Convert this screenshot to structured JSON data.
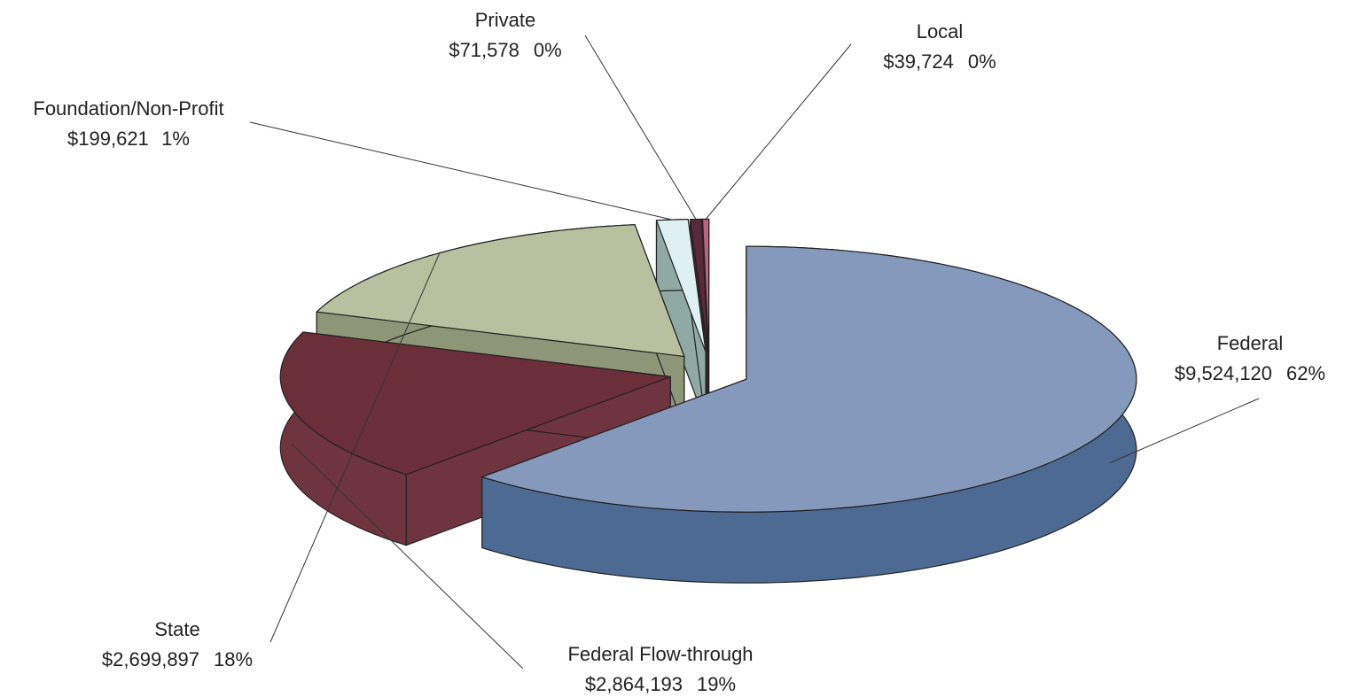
{
  "chart_data": {
    "type": "pie3d",
    "categories": [
      "Federal",
      "Federal Flow-through",
      "State",
      "Foundation/Non-Profit",
      "Private",
      "Local"
    ],
    "values": [
      9524120,
      2864193,
      2699897,
      199621,
      71578,
      39724
    ],
    "value_labels": [
      "$9,524,120",
      "$2,864,193",
      "$2,699,897",
      "$199,621",
      "$71,578",
      "$39,724"
    ],
    "percent_labels": [
      "62%",
      "19%",
      "18%",
      "1%",
      "0%",
      "0%"
    ],
    "colors": [
      "#8499bb",
      "#6b2f3a",
      "#b9c0a0",
      "#dff0f2",
      "#5a2a3a",
      "#c06080"
    ],
    "side_colors": [
      "#4d6b92",
      "#6e3440",
      "#8e9678",
      "#8fa9a4",
      "#4a2030",
      "#a04868"
    ]
  }
}
